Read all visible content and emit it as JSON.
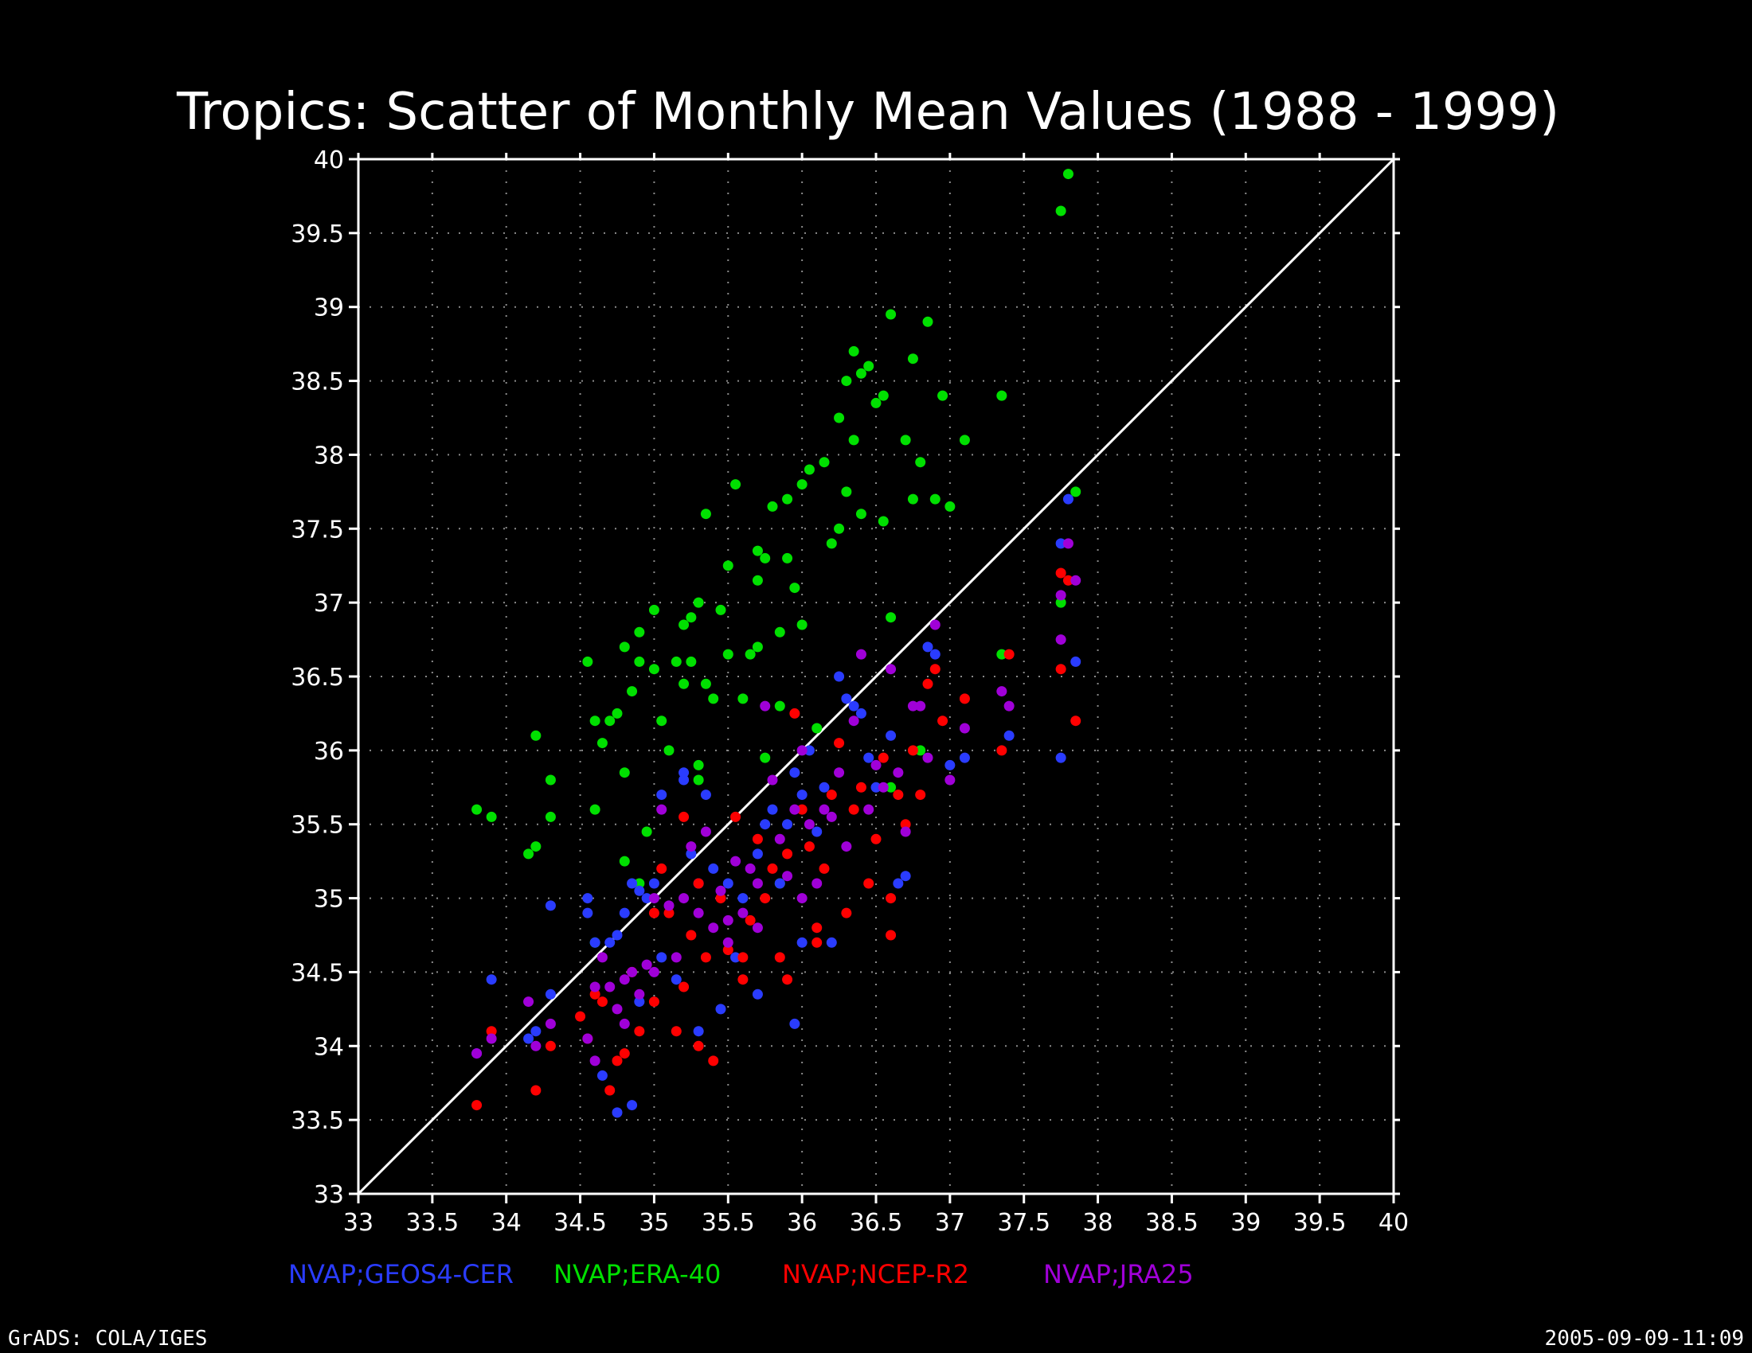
{
  "title": "Tropics: Scatter of Monthly Mean Values (1988 - 1999)",
  "footer_left": "GrADS: COLA/IGES",
  "footer_right": "2005-09-09-11:09",
  "colors": {
    "background": "#000000",
    "axis": "#ffffff",
    "grid": "#8a8a8a",
    "diagonal": "#ffffff"
  },
  "chart_data": {
    "type": "scatter",
    "title": "Tropics: Scatter of Monthly Mean Values (1988 - 1999)",
    "xlabel": "",
    "ylabel": "",
    "xlim": [
      33,
      40
    ],
    "ylim": [
      33,
      40
    ],
    "x_ticks": [
      "33",
      "33.5",
      "34",
      "34.5",
      "35",
      "35.5",
      "36",
      "36.5",
      "37",
      "37.5",
      "38",
      "38.5",
      "39",
      "39.5",
      "40"
    ],
    "y_ticks": [
      "33",
      "33.5",
      "34",
      "34.5",
      "35",
      "35.5",
      "36",
      "36.5",
      "37",
      "37.5",
      "38",
      "38.5",
      "39",
      "39.5",
      "40"
    ],
    "grid": "dotted",
    "reference_line": {
      "from": [
        33,
        33
      ],
      "to": [
        40,
        40
      ]
    },
    "legend_position": "bottom",
    "series": [
      {
        "name": "NVAP;GEOS4-CER",
        "color": "#2a3cff",
        "points": [
          [
            33.8,
            33.95
          ],
          [
            33.9,
            34.45
          ],
          [
            34.15,
            34.05
          ],
          [
            34.2,
            34.1
          ],
          [
            34.3,
            34.35
          ],
          [
            34.3,
            34.95
          ],
          [
            34.55,
            35.0
          ],
          [
            34.55,
            34.9
          ],
          [
            34.6,
            34.7
          ],
          [
            34.7,
            34.7
          ],
          [
            34.75,
            34.75
          ],
          [
            34.8,
            34.9
          ],
          [
            34.85,
            35.1
          ],
          [
            34.9,
            35.05
          ],
          [
            34.95,
            35.0
          ],
          [
            35.0,
            35.1
          ],
          [
            35.05,
            35.7
          ],
          [
            35.15,
            34.45
          ],
          [
            35.2,
            35.85
          ],
          [
            35.2,
            35.8
          ],
          [
            35.25,
            35.3
          ],
          [
            35.3,
            35.1
          ],
          [
            35.35,
            35.7
          ],
          [
            35.4,
            35.2
          ],
          [
            35.5,
            35.1
          ],
          [
            35.6,
            35.0
          ],
          [
            35.7,
            35.3
          ],
          [
            35.75,
            35.5
          ],
          [
            35.8,
            35.6
          ],
          [
            35.85,
            35.1
          ],
          [
            35.9,
            35.5
          ],
          [
            35.95,
            35.85
          ],
          [
            36.0,
            35.7
          ],
          [
            36.05,
            36.0
          ],
          [
            36.1,
            35.45
          ],
          [
            36.15,
            35.75
          ],
          [
            36.25,
            36.5
          ],
          [
            36.3,
            36.35
          ],
          [
            36.35,
            36.3
          ],
          [
            36.4,
            36.25
          ],
          [
            36.45,
            35.95
          ],
          [
            36.5,
            35.75
          ],
          [
            36.6,
            36.1
          ],
          [
            36.65,
            35.1
          ],
          [
            36.7,
            35.15
          ],
          [
            36.85,
            36.7
          ],
          [
            36.9,
            36.65
          ],
          [
            37.0,
            35.9
          ],
          [
            37.1,
            35.95
          ],
          [
            37.4,
            36.1
          ],
          [
            37.75,
            37.4
          ],
          [
            37.8,
            37.7
          ],
          [
            37.85,
            36.6
          ],
          [
            37.75,
            35.95
          ],
          [
            34.85,
            33.6
          ],
          [
            34.75,
            33.55
          ],
          [
            34.65,
            33.8
          ],
          [
            35.3,
            34.1
          ],
          [
            35.45,
            34.25
          ],
          [
            35.95,
            34.15
          ],
          [
            35.7,
            34.35
          ],
          [
            35.55,
            34.6
          ],
          [
            35.05,
            34.6
          ],
          [
            34.9,
            34.3
          ],
          [
            36.2,
            34.7
          ],
          [
            36.0,
            34.7
          ]
        ]
      },
      {
        "name": "NVAP;ERA-40",
        "color": "#00e000",
        "points": [
          [
            33.8,
            35.6
          ],
          [
            33.9,
            35.55
          ],
          [
            34.15,
            35.3
          ],
          [
            34.2,
            35.35
          ],
          [
            34.2,
            36.1
          ],
          [
            34.3,
            35.8
          ],
          [
            34.3,
            35.55
          ],
          [
            34.55,
            36.6
          ],
          [
            34.6,
            36.2
          ],
          [
            34.6,
            35.6
          ],
          [
            34.65,
            36.05
          ],
          [
            34.7,
            36.2
          ],
          [
            34.75,
            36.25
          ],
          [
            34.8,
            36.7
          ],
          [
            34.8,
            35.25
          ],
          [
            34.8,
            35.85
          ],
          [
            34.85,
            36.4
          ],
          [
            34.9,
            36.6
          ],
          [
            34.9,
            36.8
          ],
          [
            34.95,
            35.45
          ],
          [
            35.0,
            36.95
          ],
          [
            35.0,
            36.55
          ],
          [
            35.05,
            36.2
          ],
          [
            35.1,
            36.0
          ],
          [
            35.15,
            36.6
          ],
          [
            35.2,
            36.85
          ],
          [
            35.2,
            36.45
          ],
          [
            35.25,
            36.6
          ],
          [
            35.25,
            36.9
          ],
          [
            35.3,
            37.0
          ],
          [
            35.3,
            35.8
          ],
          [
            35.35,
            37.6
          ],
          [
            35.35,
            36.45
          ],
          [
            35.4,
            36.35
          ],
          [
            35.45,
            36.95
          ],
          [
            35.5,
            37.25
          ],
          [
            35.5,
            36.65
          ],
          [
            35.55,
            37.8
          ],
          [
            35.6,
            36.35
          ],
          [
            35.65,
            36.65
          ],
          [
            35.7,
            37.35
          ],
          [
            35.7,
            37.15
          ],
          [
            35.7,
            36.7
          ],
          [
            35.75,
            37.3
          ],
          [
            35.8,
            37.65
          ],
          [
            35.85,
            36.3
          ],
          [
            35.85,
            36.8
          ],
          [
            35.9,
            37.7
          ],
          [
            35.9,
            37.3
          ],
          [
            35.95,
            37.1
          ],
          [
            36.0,
            37.8
          ],
          [
            36.0,
            36.85
          ],
          [
            36.05,
            37.9
          ],
          [
            36.1,
            36.15
          ],
          [
            36.15,
            37.95
          ],
          [
            36.2,
            37.4
          ],
          [
            36.25,
            38.25
          ],
          [
            36.25,
            37.5
          ],
          [
            36.3,
            38.5
          ],
          [
            36.3,
            37.75
          ],
          [
            36.35,
            38.7
          ],
          [
            36.35,
            38.1
          ],
          [
            36.4,
            38.55
          ],
          [
            36.4,
            37.6
          ],
          [
            36.45,
            38.6
          ],
          [
            36.5,
            38.35
          ],
          [
            36.55,
            38.4
          ],
          [
            36.55,
            37.55
          ],
          [
            36.6,
            38.95
          ],
          [
            36.6,
            36.9
          ],
          [
            36.7,
            38.1
          ],
          [
            36.75,
            38.65
          ],
          [
            36.75,
            37.7
          ],
          [
            36.8,
            37.95
          ],
          [
            36.85,
            38.9
          ],
          [
            36.9,
            37.7
          ],
          [
            36.95,
            38.4
          ],
          [
            37.0,
            37.65
          ],
          [
            37.1,
            38.1
          ],
          [
            37.35,
            38.4
          ],
          [
            37.35,
            36.65
          ],
          [
            37.75,
            39.65
          ],
          [
            37.8,
            39.9
          ],
          [
            37.75,
            37.0
          ],
          [
            37.85,
            37.75
          ],
          [
            34.6,
            34.7
          ],
          [
            34.9,
            35.1
          ],
          [
            35.3,
            35.9
          ],
          [
            35.75,
            35.95
          ],
          [
            35.85,
            35.1
          ],
          [
            36.6,
            35.75
          ],
          [
            36.8,
            36.0
          ]
        ]
      },
      {
        "name": "NVAP;NCEP-R2",
        "color": "#ff0000",
        "points": [
          [
            33.8,
            33.6
          ],
          [
            33.9,
            34.1
          ],
          [
            34.2,
            33.7
          ],
          [
            34.3,
            34.0
          ],
          [
            34.5,
            34.2
          ],
          [
            34.6,
            34.35
          ],
          [
            34.7,
            33.7
          ],
          [
            34.75,
            33.9
          ],
          [
            34.8,
            33.95
          ],
          [
            34.85,
            34.5
          ],
          [
            34.9,
            34.1
          ],
          [
            35.0,
            34.3
          ],
          [
            35.05,
            35.2
          ],
          [
            35.1,
            34.9
          ],
          [
            35.15,
            34.1
          ],
          [
            35.2,
            35.55
          ],
          [
            35.25,
            34.75
          ],
          [
            35.3,
            34.0
          ],
          [
            35.35,
            34.6
          ],
          [
            35.4,
            33.9
          ],
          [
            35.45,
            35.0
          ],
          [
            35.5,
            34.65
          ],
          [
            35.55,
            35.55
          ],
          [
            35.6,
            34.45
          ],
          [
            35.65,
            34.85
          ],
          [
            35.7,
            35.4
          ],
          [
            35.75,
            35.0
          ],
          [
            35.8,
            35.2
          ],
          [
            35.85,
            34.6
          ],
          [
            35.9,
            35.3
          ],
          [
            35.95,
            36.25
          ],
          [
            36.0,
            35.6
          ],
          [
            36.05,
            35.35
          ],
          [
            36.1,
            34.8
          ],
          [
            36.15,
            35.2
          ],
          [
            36.2,
            35.7
          ],
          [
            36.25,
            36.05
          ],
          [
            36.3,
            34.9
          ],
          [
            36.35,
            35.6
          ],
          [
            36.4,
            35.75
          ],
          [
            36.45,
            35.1
          ],
          [
            36.5,
            35.4
          ],
          [
            36.55,
            35.95
          ],
          [
            36.6,
            35.0
          ],
          [
            36.6,
            34.75
          ],
          [
            36.65,
            35.7
          ],
          [
            36.7,
            35.5
          ],
          [
            36.75,
            36.0
          ],
          [
            36.8,
            35.7
          ],
          [
            36.85,
            36.45
          ],
          [
            36.9,
            36.55
          ],
          [
            36.95,
            36.2
          ],
          [
            37.1,
            36.35
          ],
          [
            37.35,
            36.0
          ],
          [
            37.4,
            36.65
          ],
          [
            37.75,
            37.2
          ],
          [
            37.75,
            36.55
          ],
          [
            37.8,
            37.15
          ],
          [
            37.85,
            36.2
          ],
          [
            34.55,
            34.05
          ],
          [
            34.65,
            34.3
          ],
          [
            35.2,
            34.4
          ],
          [
            35.6,
            34.6
          ],
          [
            35.9,
            34.45
          ],
          [
            36.1,
            34.7
          ],
          [
            35.0,
            34.9
          ],
          [
            35.3,
            35.1
          ]
        ]
      },
      {
        "name": "NVAP;JRA25",
        "color": "#a000d8",
        "points": [
          [
            33.8,
            33.95
          ],
          [
            33.9,
            34.05
          ],
          [
            34.15,
            34.3
          ],
          [
            34.2,
            34.0
          ],
          [
            34.3,
            34.15
          ],
          [
            34.55,
            34.05
          ],
          [
            34.6,
            34.4
          ],
          [
            34.65,
            34.6
          ],
          [
            34.7,
            34.4
          ],
          [
            34.75,
            34.25
          ],
          [
            34.8,
            34.45
          ],
          [
            34.85,
            34.5
          ],
          [
            34.9,
            34.35
          ],
          [
            34.95,
            34.55
          ],
          [
            35.0,
            35.0
          ],
          [
            35.05,
            35.6
          ],
          [
            35.1,
            34.95
          ],
          [
            35.15,
            34.6
          ],
          [
            35.2,
            35.0
          ],
          [
            35.25,
            35.35
          ],
          [
            35.3,
            34.9
          ],
          [
            35.35,
            35.45
          ],
          [
            35.4,
            34.8
          ],
          [
            35.45,
            35.05
          ],
          [
            35.5,
            34.85
          ],
          [
            35.55,
            35.25
          ],
          [
            35.6,
            34.9
          ],
          [
            35.65,
            35.2
          ],
          [
            35.7,
            35.1
          ],
          [
            35.75,
            36.3
          ],
          [
            35.8,
            35.8
          ],
          [
            35.85,
            35.4
          ],
          [
            35.9,
            35.15
          ],
          [
            35.95,
            35.6
          ],
          [
            36.0,
            36.0
          ],
          [
            36.05,
            35.5
          ],
          [
            36.1,
            35.1
          ],
          [
            36.15,
            35.6
          ],
          [
            36.2,
            35.55
          ],
          [
            36.25,
            35.85
          ],
          [
            36.3,
            35.35
          ],
          [
            36.35,
            36.2
          ],
          [
            36.4,
            36.65
          ],
          [
            36.45,
            35.6
          ],
          [
            36.5,
            35.9
          ],
          [
            36.55,
            35.75
          ],
          [
            36.6,
            36.55
          ],
          [
            36.65,
            35.85
          ],
          [
            36.7,
            35.45
          ],
          [
            36.75,
            36.3
          ],
          [
            36.8,
            36.3
          ],
          [
            36.85,
            35.95
          ],
          [
            36.9,
            36.85
          ],
          [
            37.0,
            35.8
          ],
          [
            37.1,
            36.15
          ],
          [
            37.35,
            36.4
          ],
          [
            37.4,
            36.3
          ],
          [
            37.75,
            37.05
          ],
          [
            37.75,
            36.75
          ],
          [
            37.8,
            37.4
          ],
          [
            37.85,
            37.15
          ],
          [
            34.6,
            33.9
          ],
          [
            34.8,
            34.15
          ],
          [
            35.0,
            34.5
          ],
          [
            35.5,
            34.7
          ],
          [
            35.7,
            34.8
          ],
          [
            36.0,
            35.0
          ]
        ]
      }
    ]
  }
}
